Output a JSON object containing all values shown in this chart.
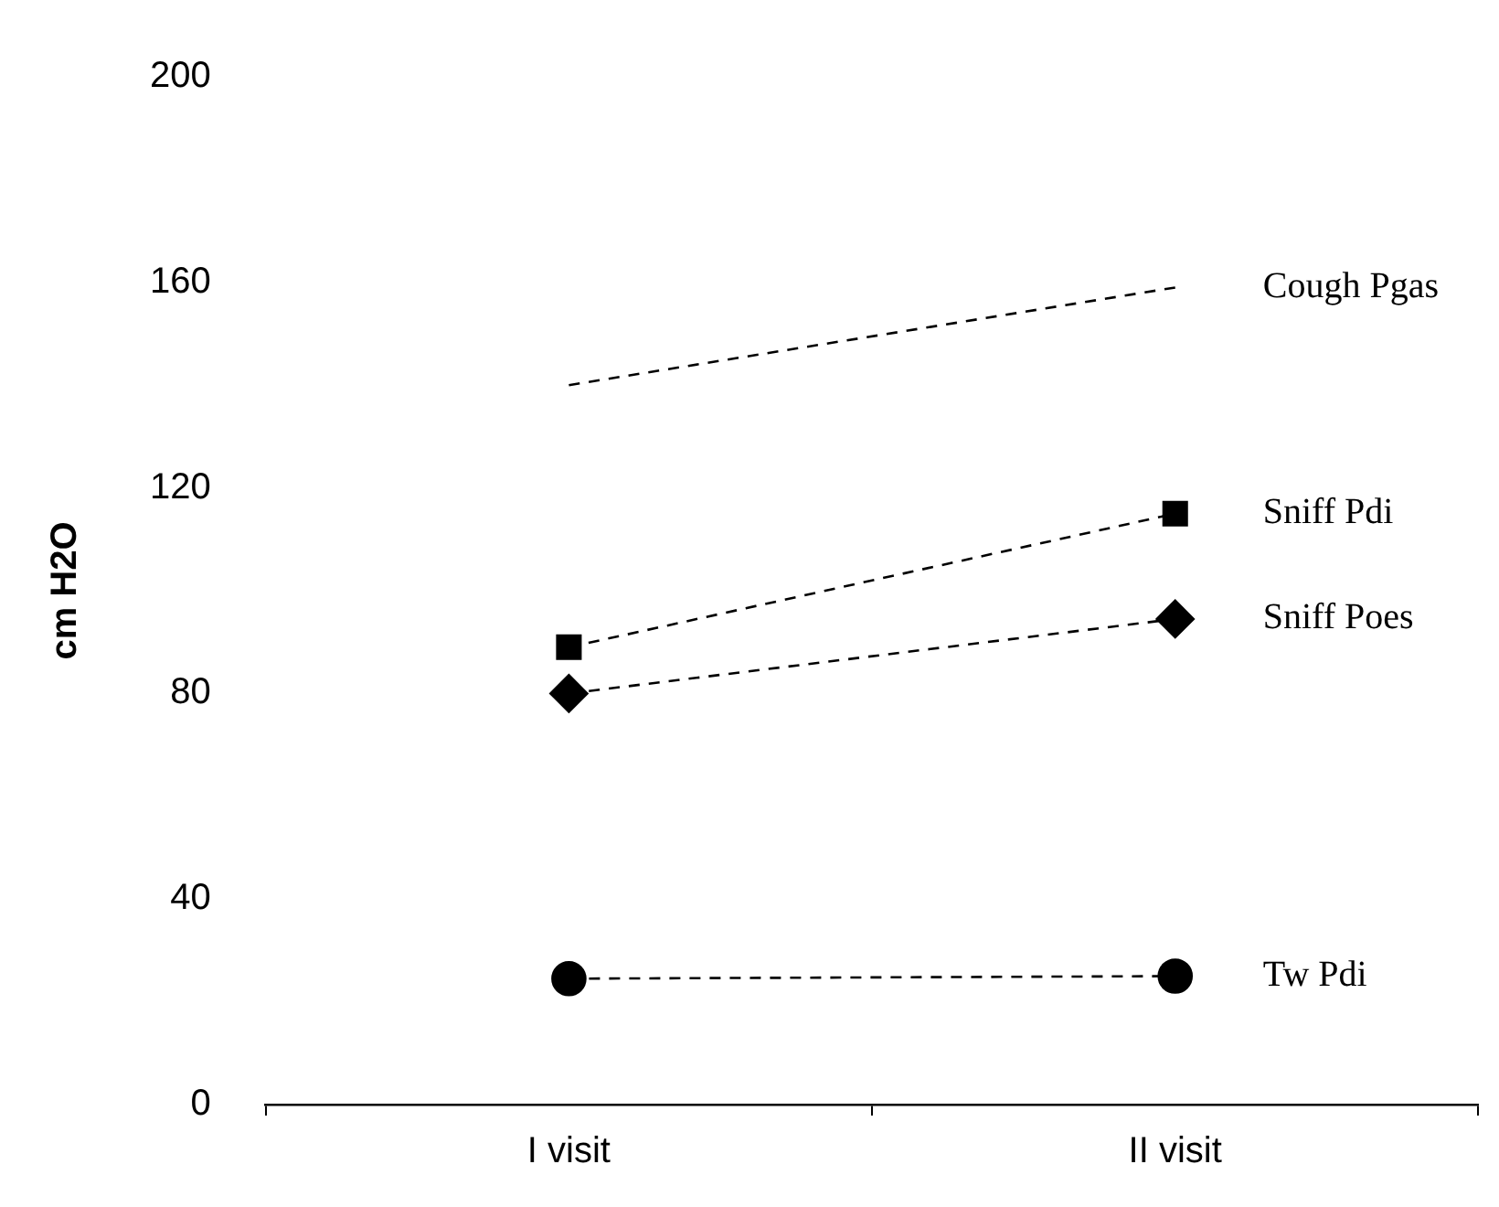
{
  "chart_data": {
    "type": "line",
    "ylabel": "cm H2O",
    "categories": [
      "I visit",
      "II visit"
    ],
    "ylim": [
      0,
      200
    ],
    "yticks": [
      0,
      40,
      80,
      120,
      160,
      200
    ],
    "grid": false,
    "legend": false,
    "series": [
      {
        "name": "Cough Pgas",
        "color": "#000000",
        "values": [
          140,
          159
        ],
        "marker": "none",
        "line_style": "dashed"
      },
      {
        "name": "Sniff Pdi",
        "color": "#000000",
        "values": [
          89,
          115
        ],
        "marker": "square",
        "line_style": "dashed"
      },
      {
        "name": "Sniff Poes",
        "color": "#000000",
        "values": [
          80,
          94.5
        ],
        "marker": "diamond",
        "line_style": "dashed"
      },
      {
        "name": "Tw Pdi",
        "color": "#000000",
        "values": [
          24.5,
          25
        ],
        "marker": "circle",
        "line_style": "dashed"
      }
    ]
  }
}
